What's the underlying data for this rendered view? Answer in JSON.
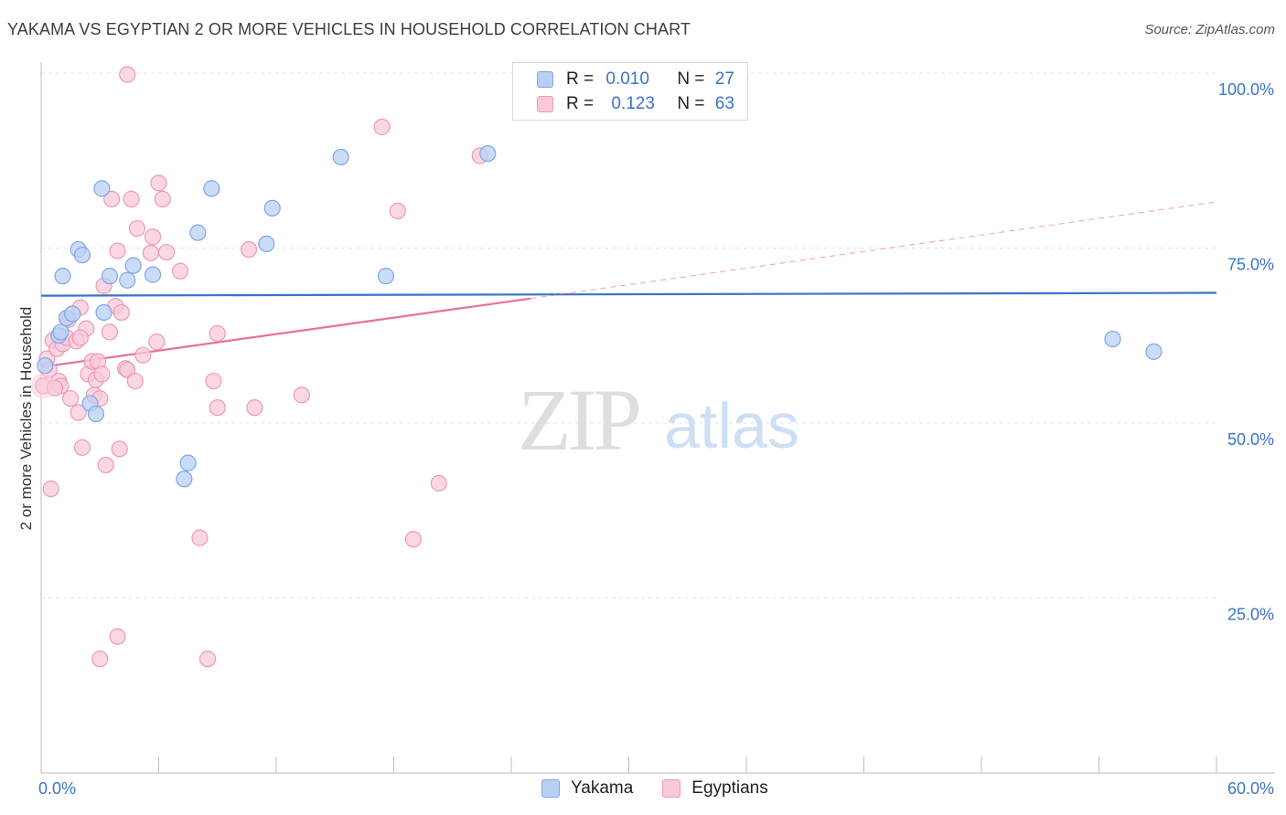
{
  "title": "YAKAMA VS EGYPTIAN 2 OR MORE VEHICLES IN HOUSEHOLD CORRELATION CHART",
  "source": "Source: ZipAtlas.com",
  "watermark": {
    "zip": "ZIP",
    "atlas": "atlas"
  },
  "legend": {
    "rows": [
      {
        "r_label": "R =",
        "r_value": "0.010",
        "n_label": "N =",
        "n_value": "27"
      },
      {
        "r_label": "R =",
        "r_value": "0.123",
        "n_label": "N =",
        "n_value": "63"
      }
    ]
  },
  "bottom_legend": [
    "Yakama",
    "Egyptians"
  ],
  "chart_data": {
    "type": "scatter",
    "title": "YAKAMA VS EGYPTIAN 2 OR MORE VEHICLES IN HOUSEHOLD CORRELATION CHART",
    "xlabel": "",
    "ylabel": "2 or more Vehicles in Household",
    "xlim": [
      0,
      60
    ],
    "ylim": [
      0,
      100
    ],
    "x_tick_labels": [
      "0.0%",
      "60.0%"
    ],
    "y_tick_labels": [
      "100.0%",
      "75.0%",
      "50.0%",
      "25.0%"
    ],
    "y_ticks": [
      100,
      75,
      50,
      25
    ],
    "grid": true,
    "colors": {
      "yakama": "#3a74c9",
      "egyptians": "#e8709a",
      "yakama_fill": "#b9d0f5",
      "egyptians_fill": "#f9c9d8"
    },
    "series": [
      {
        "name": "Yakama",
        "points": [
          [
            0.2,
            58.2
          ],
          [
            0.9,
            62.5
          ],
          [
            1.0,
            63.0
          ],
          [
            1.1,
            71.0
          ],
          [
            1.3,
            65.0
          ],
          [
            1.6,
            65.6
          ],
          [
            1.9,
            74.8
          ],
          [
            2.1,
            74.0
          ],
          [
            2.5,
            52.8
          ],
          [
            2.8,
            51.3
          ],
          [
            3.1,
            83.5
          ],
          [
            3.2,
            65.8
          ],
          [
            3.5,
            71.0
          ],
          [
            4.4,
            70.4
          ],
          [
            4.7,
            72.5
          ],
          [
            5.7,
            71.2
          ],
          [
            7.3,
            42.0
          ],
          [
            7.5,
            44.3
          ],
          [
            8.0,
            77.2
          ],
          [
            8.7,
            83.5
          ],
          [
            11.5,
            75.6
          ],
          [
            11.8,
            80.7
          ],
          [
            15.3,
            88.0
          ],
          [
            17.6,
            71.0
          ],
          [
            22.8,
            88.5
          ],
          [
            54.7,
            62.0
          ],
          [
            56.8,
            60.2
          ]
        ],
        "trend": {
          "x": [
            0,
            60
          ],
          "y": [
            68.2,
            68.6
          ]
        }
      },
      {
        "name": "Egyptians",
        "points": [
          [
            0.1,
            55.3
          ],
          [
            0.3,
            59.2
          ],
          [
            0.4,
            57.6
          ],
          [
            0.5,
            40.6
          ],
          [
            0.6,
            61.8
          ],
          [
            0.8,
            60.6
          ],
          [
            0.9,
            56.0
          ],
          [
            1.0,
            55.3
          ],
          [
            1.1,
            61.3
          ],
          [
            1.3,
            62.2
          ],
          [
            1.5,
            53.5
          ],
          [
            1.8,
            61.7
          ],
          [
            1.9,
            51.5
          ],
          [
            2.0,
            66.5
          ],
          [
            2.1,
            46.5
          ],
          [
            2.3,
            63.5
          ],
          [
            2.4,
            57.0
          ],
          [
            2.6,
            58.8
          ],
          [
            2.7,
            54.0
          ],
          [
            2.8,
            56.2
          ],
          [
            2.9,
            58.8
          ],
          [
            3.0,
            53.5
          ],
          [
            3.1,
            57.0
          ],
          [
            3.2,
            69.6
          ],
          [
            3.3,
            44.0
          ],
          [
            3.5,
            63.0
          ],
          [
            3.6,
            82.0
          ],
          [
            3.8,
            66.7
          ],
          [
            3.9,
            74.6
          ],
          [
            4.0,
            46.3
          ],
          [
            4.1,
            65.8
          ],
          [
            4.3,
            57.8
          ],
          [
            4.4,
            57.6
          ],
          [
            4.6,
            82.0
          ],
          [
            4.8,
            56.0
          ],
          [
            4.9,
            77.8
          ],
          [
            5.2,
            59.7
          ],
          [
            5.6,
            74.3
          ],
          [
            5.7,
            76.6
          ],
          [
            5.9,
            61.6
          ],
          [
            6.0,
            84.3
          ],
          [
            6.2,
            82.0
          ],
          [
            6.4,
            74.4
          ],
          [
            7.1,
            71.7
          ],
          [
            8.1,
            33.6
          ],
          [
            8.5,
            16.3
          ],
          [
            8.8,
            56.0
          ],
          [
            9.0,
            52.2
          ],
          [
            9.0,
            62.8
          ],
          [
            10.6,
            74.8
          ],
          [
            10.9,
            52.2
          ],
          [
            13.3,
            54.0
          ],
          [
            17.4,
            92.3
          ],
          [
            18.2,
            80.3
          ],
          [
            19.0,
            33.4
          ],
          [
            20.3,
            41.4
          ],
          [
            22.4,
            88.2
          ],
          [
            4.4,
            99.8
          ],
          [
            3.0,
            16.3
          ],
          [
            3.9,
            19.5
          ],
          [
            2.0,
            62.2
          ],
          [
            1.4,
            64.8
          ],
          [
            0.7,
            55.0
          ]
        ],
        "trend_solid": {
          "x": [
            0,
            25
          ],
          "y": [
            58.0,
            67.8
          ]
        },
        "trend_dashed": {
          "x": [
            25,
            60
          ],
          "y": [
            67.8,
            81.6
          ]
        }
      }
    ]
  }
}
